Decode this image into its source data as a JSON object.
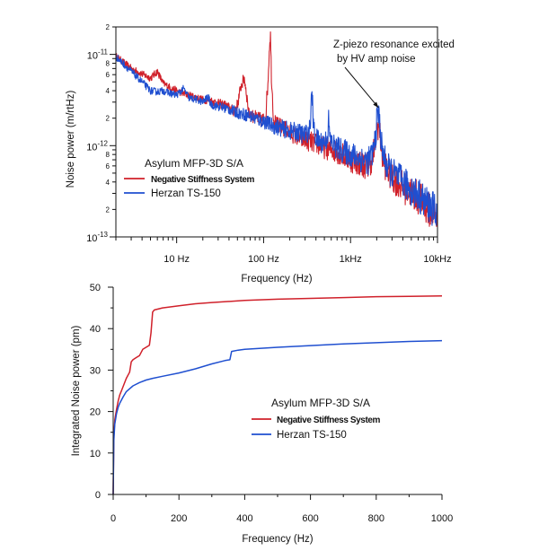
{
  "colors": {
    "red_series": "#d0202a",
    "blue_series": "#1f4fd0",
    "axis": "#111111"
  },
  "chart_data": [
    {
      "type": "line",
      "xscale": "log",
      "yscale": "log",
      "xlim": [
        2,
        10000
      ],
      "ylim": [
        1e-13,
        2e-11
      ],
      "ylabel": "Noise power (m/rtHz)",
      "xlabel": "Frequency (Hz)",
      "x_tick_labels": [
        {
          "value": 10,
          "label": "10 Hz"
        },
        {
          "value": 100,
          "label": "100 Hz"
        },
        {
          "value": 1000,
          "label": "1kHz"
        },
        {
          "value": 10000,
          "label": "10kHz"
        }
      ],
      "y_major_labels": [
        {
          "value": 1e-13,
          "base": "10",
          "exp": "-13"
        },
        {
          "value": 1e-12,
          "base": "10",
          "exp": "-12"
        },
        {
          "value": 1e-11,
          "base": "10",
          "exp": "-11"
        }
      ],
      "y_minor_labels": [
        {
          "value": 2e-13,
          "label": "2"
        },
        {
          "value": 4e-13,
          "label": "4"
        },
        {
          "value": 6e-13,
          "label": "6"
        },
        {
          "value": 8e-13,
          "label": "8"
        },
        {
          "value": 2e-12,
          "label": "2"
        },
        {
          "value": 4e-12,
          "label": "4"
        },
        {
          "value": 6e-12,
          "label": "6"
        },
        {
          "value": 8e-12,
          "label": "8"
        },
        {
          "value": 2e-11,
          "label": "2"
        }
      ],
      "legend_title": "Asylum MFP-3D S/A",
      "legend_position": "lower-left",
      "annotation": {
        "lines": [
          "Z-piezo resonance excited",
          "by HV amp noise"
        ],
        "arrow_to": {
          "x": 2100,
          "y": 2.6e-12
        }
      },
      "series": [
        {
          "name": "Negative Stiffness System",
          "color": "#d0202a",
          "points": [
            [
              2,
              9.5e-12
            ],
            [
              3,
              7e-12
            ],
            [
              4,
              6.1e-12
            ],
            [
              5,
              5.5e-12
            ],
            [
              6,
              6.5e-12
            ],
            [
              7,
              4.8e-12
            ],
            [
              9,
              4.2e-12
            ],
            [
              12,
              3.7e-12
            ],
            [
              15,
              3.5e-12
            ],
            [
              20,
              3.2e-12
            ],
            [
              25,
              3.1e-12
            ],
            [
              30,
              2.9e-12
            ],
            [
              35,
              2.8e-12
            ],
            [
              40,
              2.6e-12
            ],
            [
              45,
              2.4e-12
            ],
            [
              50,
              2.8e-12
            ],
            [
              55,
              4.5e-12
            ],
            [
              60,
              5.5e-12
            ],
            [
              63,
              4e-12
            ],
            [
              68,
              2.2e-12
            ],
            [
              75,
              2.1e-12
            ],
            [
              85,
              2e-12
            ],
            [
              95,
              1.9e-12
            ],
            [
              105,
              2e-12
            ],
            [
              112,
              4.8e-12
            ],
            [
              117,
              1.3e-11
            ],
            [
              120,
              1.6e-11
            ],
            [
              123,
              6e-12
            ],
            [
              130,
              2e-12
            ],
            [
              140,
              1.7e-12
            ],
            [
              160,
              1.6e-12
            ],
            [
              180,
              1.5e-12
            ],
            [
              200,
              1.4e-12
            ],
            [
              230,
              1.3e-12
            ],
            [
              260,
              1.2e-12
            ],
            [
              300,
              1.15e-12
            ],
            [
              350,
              1.1e-12
            ],
            [
              400,
              1.05e-12
            ],
            [
              450,
              1e-12
            ],
            [
              500,
              9.5e-13
            ],
            [
              600,
              9e-13
            ],
            [
              700,
              8.6e-13
            ],
            [
              800,
              8e-13
            ],
            [
              900,
              7.5e-13
            ],
            [
              1000,
              7e-13
            ],
            [
              1200,
              6.6e-13
            ],
            [
              1400,
              6.2e-13
            ],
            [
              1600,
              6e-13
            ],
            [
              1800,
              7.5e-13
            ],
            [
              1950,
              1.2e-12
            ],
            [
              2050,
              1.7e-12
            ],
            [
              2150,
              1.5e-12
            ],
            [
              2300,
              8e-13
            ],
            [
              2600,
              5.5e-13
            ],
            [
              3000,
              4.5e-13
            ],
            [
              3500,
              4e-13
            ],
            [
              4000,
              3.5e-13
            ],
            [
              5000,
              3.1e-13
            ],
            [
              6000,
              2.7e-13
            ],
            [
              7000,
              2.3e-13
            ],
            [
              8000,
              2e-13
            ],
            [
              9000,
              1.8e-13
            ],
            [
              10000,
              1.7e-13
            ]
          ]
        },
        {
          "name": "Herzan TS-150",
          "color": "#1f4fd0",
          "points": [
            [
              2,
              9.5e-12
            ],
            [
              3,
              6.5e-12
            ],
            [
              4,
              5e-12
            ],
            [
              5,
              4e-12
            ],
            [
              6,
              3.9e-12
            ],
            [
              7,
              4e-12
            ],
            [
              8,
              3.8e-12
            ],
            [
              10,
              3.6e-12
            ],
            [
              12,
              4.2e-12
            ],
            [
              14,
              3.3e-12
            ],
            [
              17,
              3.2e-12
            ],
            [
              20,
              3e-12
            ],
            [
              23,
              3.4e-12
            ],
            [
              25,
              2.8e-12
            ],
            [
              30,
              2.7e-12
            ],
            [
              35,
              2.6e-12
            ],
            [
              40,
              2.5e-12
            ],
            [
              50,
              2.3e-12
            ],
            [
              60,
              2.2e-12
            ],
            [
              70,
              2.1e-12
            ],
            [
              80,
              2e-12
            ],
            [
              90,
              1.9e-12
            ],
            [
              100,
              1.85e-12
            ],
            [
              120,
              1.7e-12
            ],
            [
              140,
              1.6e-12
            ],
            [
              160,
              1.55e-12
            ],
            [
              180,
              1.5e-12
            ],
            [
              200,
              1.45e-12
            ],
            [
              250,
              1.4e-12
            ],
            [
              300,
              1.3e-12
            ],
            [
              340,
              1.5e-12
            ],
            [
              360,
              4e-12
            ],
            [
              375,
              1.6e-12
            ],
            [
              400,
              1.2e-12
            ],
            [
              450,
              1.1e-12
            ],
            [
              500,
              1.1e-12
            ],
            [
              540,
              1.2e-12
            ],
            [
              560,
              1.9e-12
            ],
            [
              580,
              1.15e-12
            ],
            [
              650,
              1e-12
            ],
            [
              700,
              9.5e-13
            ],
            [
              800,
              8.8e-13
            ],
            [
              900,
              8.4e-13
            ],
            [
              1000,
              8e-13
            ],
            [
              1200,
              7.5e-13
            ],
            [
              1400,
              7e-13
            ],
            [
              1600,
              6.8e-13
            ],
            [
              1800,
              8e-13
            ],
            [
              1950,
              1.3e-12
            ],
            [
              2050,
              2.4e-12
            ],
            [
              2150,
              1.9e-12
            ],
            [
              2300,
              9e-13
            ],
            [
              2600,
              6e-13
            ],
            [
              3000,
              5e-13
            ],
            [
              3500,
              4.5e-13
            ],
            [
              4000,
              4e-13
            ],
            [
              4500,
              3.6e-13
            ],
            [
              5000,
              3.3e-13
            ],
            [
              6000,
              2.9e-13
            ],
            [
              7000,
              2.5e-13
            ],
            [
              8000,
              2.2e-13
            ],
            [
              9000,
              2e-13
            ],
            [
              10000,
              1.9e-13
            ]
          ]
        }
      ]
    },
    {
      "type": "line",
      "xlim": [
        0,
        1000
      ],
      "ylim": [
        0,
        50
      ],
      "xlabel": "Frequency (Hz)",
      "ylabel": "Integrated Noise power (pm)",
      "xticks": [
        0,
        200,
        400,
        600,
        800,
        1000
      ],
      "yticks": [
        0,
        10,
        20,
        30,
        40,
        50
      ],
      "legend_title": "Asylum MFP-3D S/A",
      "legend_position": "lower-right",
      "series": [
        {
          "name": "Negative Stiffness System",
          "color": "#d0202a",
          "points": [
            [
              0,
              0
            ],
            [
              2,
              14
            ],
            [
              5,
              18
            ],
            [
              10,
              20.5
            ],
            [
              15,
              22.5
            ],
            [
              20,
              24
            ],
            [
              25,
              25
            ],
            [
              30,
              26
            ],
            [
              40,
              28
            ],
            [
              50,
              29.5
            ],
            [
              55,
              32
            ],
            [
              60,
              32.5
            ],
            [
              70,
              33
            ],
            [
              80,
              33.5
            ],
            [
              90,
              35
            ],
            [
              100,
              35.5
            ],
            [
              110,
              36
            ],
            [
              115,
              39
            ],
            [
              120,
              44
            ],
            [
              125,
              44.5
            ],
            [
              150,
              45
            ],
            [
              200,
              45.5
            ],
            [
              250,
              46
            ],
            [
              300,
              46.3
            ],
            [
              400,
              46.8
            ],
            [
              500,
              47.1
            ],
            [
              600,
              47.3
            ],
            [
              700,
              47.5
            ],
            [
              800,
              47.7
            ],
            [
              900,
              47.8
            ],
            [
              1000,
              47.9
            ]
          ]
        },
        {
          "name": "Herzan TS-150",
          "color": "#1f4fd0",
          "points": [
            [
              0,
              0
            ],
            [
              2,
              13
            ],
            [
              5,
              17
            ],
            [
              10,
              19.5
            ],
            [
              15,
              21
            ],
            [
              20,
              22
            ],
            [
              30,
              23.5
            ],
            [
              40,
              24.8
            ],
            [
              50,
              25.5
            ],
            [
              60,
              26.2
            ],
            [
              80,
              27
            ],
            [
              100,
              27.6
            ],
            [
              120,
              28
            ],
            [
              150,
              28.5
            ],
            [
              200,
              29.3
            ],
            [
              250,
              30.3
            ],
            [
              300,
              31.5
            ],
            [
              340,
              32.3
            ],
            [
              355,
              32.5
            ],
            [
              360,
              34.5
            ],
            [
              380,
              34.8
            ],
            [
              400,
              35
            ],
            [
              500,
              35.5
            ],
            [
              600,
              35.9
            ],
            [
              700,
              36.3
            ],
            [
              800,
              36.6
            ],
            [
              900,
              36.9
            ],
            [
              1000,
              37.1
            ]
          ]
        }
      ]
    }
  ]
}
